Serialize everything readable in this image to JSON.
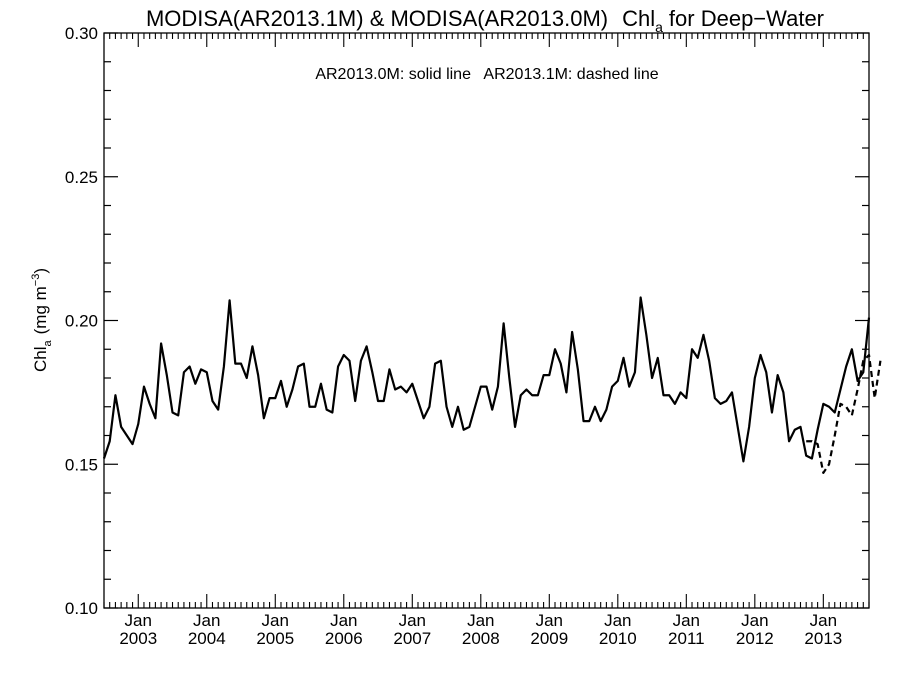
{
  "chart_data": {
    "type": "line",
    "title_main": "MODISA(AR2013.1M) & MODISA(AR2013.0M)",
    "title_var": "Chl",
    "title_sub": "a",
    "title_suffix": "for Deep−Water",
    "annotation": "AR2013.0M: solid line   AR2013.1M: dashed line",
    "ylabel_main": "Chl",
    "ylabel_sub": "a",
    "ylabel_unit": "(mg m",
    "ylabel_exp": "−3",
    "ylabel_close": ")",
    "ylim": [
      0.1,
      0.3
    ],
    "yticks": [
      0.1,
      0.15,
      0.2,
      0.25,
      0.3
    ],
    "ytick_labels": [
      "0.10",
      "0.15",
      "0.20",
      "0.25",
      "0.30"
    ],
    "xlim": [
      "2002-07",
      "2013-09"
    ],
    "xticks": [
      {
        "date": "2003-01",
        "month": "Jan",
        "year": "2003"
      },
      {
        "date": "2004-01",
        "month": "Jan",
        "year": "2004"
      },
      {
        "date": "2005-01",
        "month": "Jan",
        "year": "2005"
      },
      {
        "date": "2006-01",
        "month": "Jan",
        "year": "2006"
      },
      {
        "date": "2007-01",
        "month": "Jan",
        "year": "2007"
      },
      {
        "date": "2008-01",
        "month": "Jan",
        "year": "2008"
      },
      {
        "date": "2009-01",
        "month": "Jan",
        "year": "2009"
      },
      {
        "date": "2010-01",
        "month": "Jan",
        "year": "2010"
      },
      {
        "date": "2011-01",
        "month": "Jan",
        "year": "2011"
      },
      {
        "date": "2012-01",
        "month": "Jan",
        "year": "2012"
      },
      {
        "date": "2013-01",
        "month": "Jan",
        "year": "2013"
      }
    ],
    "series": [
      {
        "style": "solid",
        "start": "2002-07",
        "values": [
          0.152,
          0.158,
          0.174,
          0.163,
          0.16,
          0.157,
          0.164,
          0.177,
          0.171,
          0.166,
          0.192,
          0.181,
          0.168,
          0.167,
          0.182,
          0.184,
          0.178,
          0.183,
          0.182,
          0.172,
          0.169,
          0.184,
          0.207,
          0.185,
          0.185,
          0.18,
          0.191,
          0.181,
          0.166,
          0.173,
          0.173,
          0.179,
          0.17,
          0.176,
          0.184,
          0.185,
          0.17,
          0.17,
          0.178,
          0.169,
          0.168,
          0.184,
          0.188,
          0.186,
          0.172,
          0.186,
          0.191,
          0.182,
          0.172,
          0.172,
          0.183,
          0.176,
          0.177,
          0.175,
          0.178,
          0.172,
          0.166,
          0.17,
          0.185,
          0.186,
          0.17,
          0.163,
          0.17,
          0.162,
          0.163,
          0.17,
          0.177,
          0.177,
          0.169,
          0.177,
          0.199,
          0.18,
          0.163,
          0.174,
          0.176,
          0.174,
          0.174,
          0.181,
          0.181,
          0.19,
          0.185,
          0.175,
          0.196,
          0.183,
          0.165,
          0.165,
          0.17,
          0.165,
          0.169,
          0.177,
          0.179,
          0.187,
          0.177,
          0.182,
          0.208,
          0.195,
          0.18,
          0.187,
          0.174,
          0.174,
          0.171,
          0.175,
          0.173,
          0.19,
          0.187,
          0.195,
          0.186,
          0.173,
          0.171,
          0.172,
          0.175,
          0.163,
          0.151,
          0.163,
          0.18,
          0.188,
          0.182,
          0.168,
          0.181,
          0.175,
          0.158,
          0.162,
          0.163,
          0.153,
          0.152,
          0.162,
          0.171,
          0.17,
          0.168,
          0.176,
          0.184,
          0.19,
          0.179,
          0.182,
          0.201
        ]
      },
      {
        "style": "dashed",
        "start": "2012-10",
        "values": [
          0.158,
          0.158,
          0.157,
          0.147,
          0.15,
          0.16,
          0.171,
          0.17,
          0.167,
          0.176,
          0.186,
          0.188,
          0.173,
          0.186
        ]
      }
    ],
    "grid": false
  }
}
